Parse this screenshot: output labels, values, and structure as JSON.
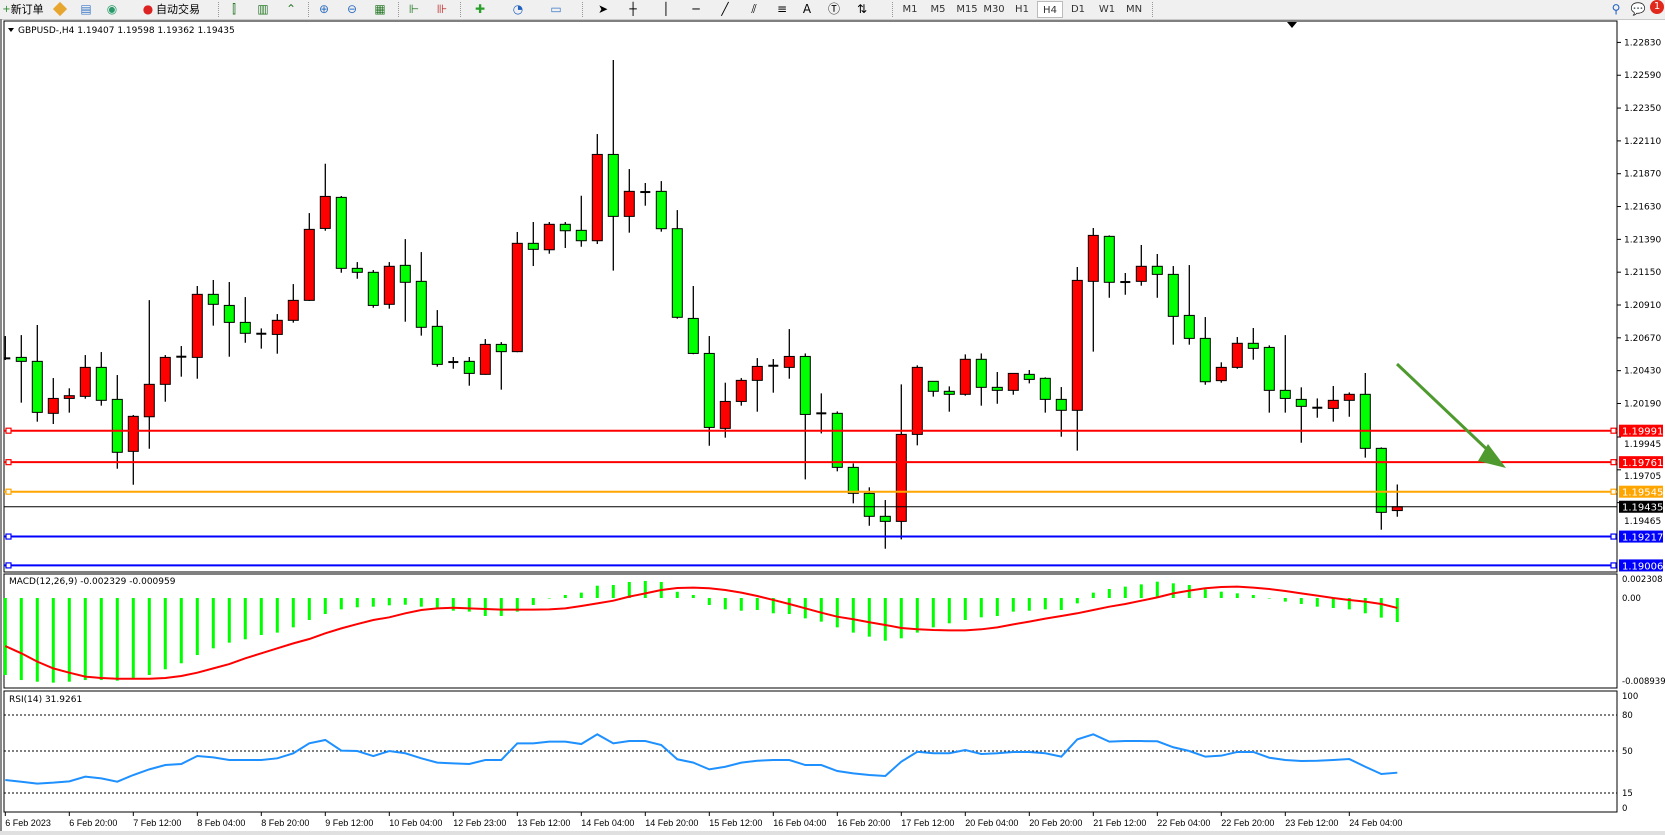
{
  "toolbar": {
    "new_order_label": "新订单",
    "auto_trading_label": "自动交易",
    "icons": [
      "new-order-icon",
      "metaeditor-icon",
      "history-center-icon",
      "signal-icon",
      "auto-trading-icon",
      "bar-chart-icon",
      "candlestick-icon",
      "line-chart-icon",
      "zoom-in-icon",
      "zoom-out-icon",
      "tile-windows-icon",
      "chart-shift-icon",
      "autoscroll-icon",
      "indicators-icon",
      "periods-icon",
      "templates-icon",
      "cursor-icon",
      "crosshair-icon",
      "vertical-line-icon",
      "horizontal-line-icon",
      "trendline-icon",
      "equidistant-channel-icon",
      "fibonacci-icon",
      "text-icon",
      "text-label-icon",
      "arrows-icon",
      "search-icon",
      "notifications-icon"
    ],
    "text_tool_label": "A",
    "timeframes": [
      "M1",
      "M5",
      "M15",
      "M30",
      "H1",
      "H4",
      "D1",
      "W1",
      "MN"
    ],
    "active_timeframe": "H4",
    "notification_count": "1"
  },
  "chart": {
    "header": "GBPUSD-,H4  1.19407 1.19598 1.19362 1.19435",
    "colors": {
      "bull": "#FF0000",
      "bear": "#00FF00",
      "outline": "#000000",
      "arrow": "#4E9A2E"
    },
    "price_ticks": [
      "1.22830",
      "1.22590",
      "1.22350",
      "1.22110",
      "1.21870",
      "1.21630",
      "1.21390",
      "1.21150",
      "1.20910",
      "1.20670",
      "1.20430",
      "1.20190",
      "1.19945",
      "1.19705",
      "1.19465"
    ],
    "levels": [
      {
        "price": "1.19991",
        "color": "#FF0000"
      },
      {
        "price": "1.19761",
        "color": "#FF0000"
      },
      {
        "price": "1.19545",
        "color": "#FFA500"
      },
      {
        "price": "1.19435",
        "color": "#000000",
        "current": true
      },
      {
        "price": "1.19217",
        "color": "#0000FF"
      },
      {
        "price": "1.19006",
        "color": "#0000FF"
      }
    ],
    "time_labels": [
      "6 Feb 2023",
      "6 Feb 20:00",
      "7 Feb 12:00",
      "8 Feb 04:00",
      "8 Feb 20:00",
      "9 Feb 12:00",
      "10 Feb 04:00",
      "12 Feb 23:00",
      "13 Feb 12:00",
      "14 Feb 04:00",
      "14 Feb 20:00",
      "15 Feb 12:00",
      "16 Feb 04:00",
      "16 Feb 20:00",
      "17 Feb 12:00",
      "20 Feb 04:00",
      "20 Feb 20:00",
      "21 Feb 12:00",
      "22 Feb 04:00",
      "22 Feb 20:00",
      "23 Feb 12:00",
      "24 Feb 04:00"
    ]
  },
  "macd": {
    "label": "MACD(12,26,9) -0.002329 -0.000959",
    "axis_labels": [
      "0.002308",
      "0.00",
      "-0.008939"
    ]
  },
  "rsi": {
    "label": "RSI(14) 31.9261",
    "axis_labels": [
      "100",
      "80",
      "50",
      "15",
      "0"
    ]
  },
  "chart_data": [
    {
      "type": "candlestick",
      "title": "GBPUSD-,H4",
      "ylim": [
        1.19006,
        1.2283
      ],
      "grid": false,
      "ohlc_order": [
        "open",
        "high",
        "low",
        "close"
      ],
      "ohlc": [
        [
          1.2052,
          1.20683,
          1.20508,
          1.2052
        ],
        [
          1.20527,
          1.2069,
          1.20196,
          1.20498
        ],
        [
          1.20498,
          1.20764,
          1.20057,
          1.20125
        ],
        [
          1.20118,
          1.20376,
          1.2004,
          1.20227
        ],
        [
          1.20227,
          1.20301,
          1.20123,
          1.20247
        ],
        [
          1.20242,
          1.20544,
          1.20225,
          1.20454
        ],
        [
          1.20454,
          1.20566,
          1.20174,
          1.20213
        ],
        [
          1.2022,
          1.20398,
          1.19713,
          1.19833
        ],
        [
          1.1984,
          1.20106,
          1.19596,
          1.20096
        ],
        [
          1.20093,
          1.20946,
          1.19859,
          1.2033
        ],
        [
          1.2033,
          1.20544,
          1.20203,
          1.20527
        ],
        [
          1.20527,
          1.2061,
          1.20386,
          1.20532
        ],
        [
          1.20527,
          1.21049,
          1.20371,
          1.20988
        ],
        [
          1.20988,
          1.21093,
          1.20759,
          1.20915
        ],
        [
          1.20907,
          1.21078,
          1.20532,
          1.20783
        ],
        [
          1.20783,
          1.20968,
          1.20634,
          1.20703
        ],
        [
          1.20703,
          1.20739,
          1.20591,
          1.207
        ],
        [
          1.20695,
          1.20844,
          1.20554,
          1.20798
        ],
        [
          1.20798,
          1.21063,
          1.20781,
          1.20944
        ],
        [
          1.20944,
          1.21582,
          1.2094,
          1.21463
        ],
        [
          1.2147,
          1.21943,
          1.21453,
          1.21704
        ],
        [
          1.21697,
          1.21707,
          1.21146,
          1.21178
        ],
        [
          1.21178,
          1.21224,
          1.21102,
          1.21149
        ],
        [
          1.21149,
          1.21166,
          1.2089,
          1.20907
        ],
        [
          1.20915,
          1.21224,
          1.20883,
          1.21193
        ],
        [
          1.212,
          1.21392,
          1.20788,
          1.21076
        ],
        [
          1.21083,
          1.21297,
          1.20686,
          1.20747
        ],
        [
          1.20754,
          1.20873,
          1.20459,
          1.20476
        ],
        [
          1.2049,
          1.2053,
          1.20444,
          1.20493
        ],
        [
          1.20498,
          1.2053,
          1.2032,
          1.2041
        ],
        [
          1.20403,
          1.20661,
          1.204,
          1.20622
        ],
        [
          1.20622,
          1.20639,
          1.20291,
          1.20569
        ],
        [
          1.20569,
          1.21444,
          1.20565,
          1.21361
        ],
        [
          1.21361,
          1.21517,
          1.21195,
          1.21317
        ],
        [
          1.21314,
          1.21517,
          1.21285,
          1.215
        ],
        [
          1.215,
          1.21517,
          1.21327,
          1.21453
        ],
        [
          1.21456,
          1.21709,
          1.21336,
          1.2138
        ],
        [
          1.2138,
          1.2216,
          1.21356,
          1.22011
        ],
        [
          1.22011,
          1.22701,
          1.21161,
          1.21558
        ],
        [
          1.21558,
          1.21904,
          1.21439,
          1.21741
        ],
        [
          1.21741,
          1.21802,
          1.21636,
          1.21736
        ],
        [
          1.21741,
          1.21816,
          1.21446,
          1.21468
        ],
        [
          1.21468,
          1.21604,
          1.2081,
          1.2082
        ],
        [
          1.20812,
          1.21049,
          1.2055,
          1.20556
        ],
        [
          1.20556,
          1.20683,
          1.19881,
          1.20015
        ],
        [
          1.20008,
          1.20342,
          1.1994,
          1.20205
        ],
        [
          1.20205,
          1.20376,
          1.20174,
          1.20359
        ],
        [
          1.20359,
          1.20522,
          1.2013,
          1.20461
        ],
        [
          1.20461,
          1.20515,
          1.20269,
          1.20466
        ],
        [
          1.20454,
          1.20734,
          1.20371,
          1.20534
        ],
        [
          1.20534,
          1.20556,
          1.19635,
          1.2011
        ],
        [
          1.2011,
          1.20264,
          1.19971,
          1.20118
        ],
        [
          1.20118,
          1.20132,
          1.19694,
          1.19723
        ],
        [
          1.19723,
          1.19752,
          1.1946,
          1.19533
        ],
        [
          1.19533,
          1.19577,
          1.19296,
          1.19365
        ],
        [
          1.19365,
          1.19484,
          1.19128,
          1.19328
        ],
        [
          1.19328,
          1.2033,
          1.19196,
          1.19964
        ],
        [
          1.19964,
          1.20469,
          1.19884,
          1.20454
        ],
        [
          1.20352,
          1.20352,
          1.2024,
          1.20279
        ],
        [
          1.20279,
          1.20315,
          1.2013,
          1.20257
        ],
        [
          1.20257,
          1.20549,
          1.20247,
          1.20513
        ],
        [
          1.20513,
          1.20556,
          1.20174,
          1.20308
        ],
        [
          1.20308,
          1.2042,
          1.20188,
          1.20286
        ],
        [
          1.20286,
          1.2041,
          1.20254,
          1.2041
        ],
        [
          1.20403,
          1.20435,
          1.20337,
          1.20366
        ],
        [
          1.20374,
          1.20381,
          1.20123,
          1.2022
        ],
        [
          1.2022,
          1.2031,
          1.19947,
          1.2014
        ],
        [
          1.2014,
          1.21188,
          1.19845,
          1.2109
        ],
        [
          1.21083,
          1.21473,
          1.20569,
          1.21419
        ],
        [
          1.21412,
          1.21419,
          1.20963,
          1.21076
        ],
        [
          1.21076,
          1.21144,
          1.20985,
          1.21078
        ],
        [
          1.21083,
          1.21349,
          1.21051,
          1.21193
        ],
        [
          1.21193,
          1.21283,
          1.20963,
          1.21134
        ],
        [
          1.21134,
          1.21195,
          1.2062,
          1.20827
        ],
        [
          1.20834,
          1.21202,
          1.2062,
          1.20666
        ],
        [
          1.20666,
          1.20822,
          1.20327,
          1.20349
        ],
        [
          1.20357,
          1.20491,
          1.20342,
          1.20454
        ],
        [
          1.20454,
          1.20676,
          1.20444,
          1.2063
        ],
        [
          1.2063,
          1.20742,
          1.2051,
          1.20593
        ],
        [
          1.206,
          1.20615,
          1.20123,
          1.20286
        ],
        [
          1.20286,
          1.2069,
          1.20123,
          1.20227
        ],
        [
          1.2022,
          1.20308,
          1.19903,
          1.20169
        ],
        [
          1.20165,
          1.20227,
          1.20086,
          1.20159
        ],
        [
          1.20154,
          1.20318,
          1.20057,
          1.20213
        ],
        [
          1.20213,
          1.20271,
          1.20093,
          1.20257
        ],
        [
          1.20257,
          1.20413,
          1.19794,
          1.19862
        ],
        [
          1.19862,
          1.19869,
          1.19267,
          1.19394
        ],
        [
          1.19407,
          1.19598,
          1.19362,
          1.19435
        ]
      ]
    },
    {
      "type": "bar",
      "title": "MACD(12,26,9)",
      "ylim": [
        -0.008939,
        0.002308
      ],
      "series": [
        {
          "name": "MACD",
          "kind": "histogram",
          "values": [
            -0.00745,
            -0.00794,
            -0.0081,
            -0.00819,
            -0.0081,
            -0.00794,
            -0.00794,
            -0.008,
            -0.00777,
            -0.00745,
            -0.0069,
            -0.00632,
            -0.00552,
            -0.00487,
            -0.00432,
            -0.004,
            -0.00358,
            -0.00335,
            -0.00284,
            -0.00213,
            -0.00155,
            -0.0011,
            -0.0009,
            -0.00084,
            -0.00071,
            -0.00065,
            -0.00084,
            -0.001,
            -0.00123,
            -0.00132,
            -0.00174,
            -0.00174,
            -0.00132,
            -0.00068,
            -3e-05,
            0.00029,
            0.00052,
            0.00119,
            0.00126,
            0.00155,
            0.00165,
            0.00155,
            0.0006,
            0.00029,
            -0.00068,
            -0.0011,
            -0.00123,
            -0.00116,
            -0.00148,
            -0.00155,
            -0.00197,
            -0.00229,
            -0.00284,
            -0.00335,
            -0.00374,
            -0.00413,
            -0.0039,
            -0.00335,
            -0.00284,
            -0.00245,
            -0.00213,
            -0.00187,
            -0.00174,
            -0.00132,
            -0.00123,
            -0.0011,
            -0.00116,
            -0.00052,
            0.00052,
            0.00087,
            0.0011,
            0.00132,
            0.00158,
            0.00142,
            0.00126,
            0.00084,
            0.00061,
            0.00045,
            0.00029,
            0.0,
            -0.00035,
            -0.00058,
            -0.00084,
            -0.00097,
            -0.0011,
            -0.00148,
            -0.0019,
            -0.002329
          ],
          "color": "#00FF00"
        },
        {
          "name": "Signal",
          "kind": "line",
          "values": [
            -0.00465,
            -0.00535,
            -0.00616,
            -0.00681,
            -0.00723,
            -0.00761,
            -0.00774,
            -0.00781,
            -0.00781,
            -0.00781,
            -0.00774,
            -0.00755,
            -0.00723,
            -0.00681,
            -0.00639,
            -0.00584,
            -0.00535,
            -0.00487,
            -0.00439,
            -0.00397,
            -0.00342,
            -0.00294,
            -0.00252,
            -0.00213,
            -0.00187,
            -0.00148,
            -0.00116,
            -0.001,
            -0.00094,
            -0.001,
            -0.00106,
            -0.00113,
            -0.00113,
            -0.00113,
            -0.0011,
            -0.001,
            -0.00077,
            -0.00052,
            -0.00026,
            0.00013,
            0.00045,
            0.00077,
            0.00097,
            0.001,
            0.00094,
            0.00077,
            0.00052,
            0.00019,
            -0.00019,
            -0.00058,
            -0.001,
            -0.00142,
            -0.00181,
            -0.00206,
            -0.00235,
            -0.00261,
            -0.0029,
            -0.00303,
            -0.0031,
            -0.00313,
            -0.00313,
            -0.00303,
            -0.00284,
            -0.00255,
            -0.00229,
            -0.002,
            -0.00174,
            -0.00148,
            -0.00116,
            -0.00084,
            -0.00058,
            -0.00026,
            6e-05,
            0.00045,
            0.00071,
            0.00094,
            0.00106,
            0.0011,
            0.001,
            0.00087,
            0.00068,
            0.00045,
            0.00023,
            0.0,
            -0.00019,
            -0.00035,
            -0.00058,
            -0.000959
          ],
          "color": "#FF0000"
        }
      ]
    },
    {
      "type": "line",
      "title": "RSI(14)",
      "ylim": [
        0,
        100
      ],
      "levels": [
        80,
        50,
        15
      ],
      "series": [
        {
          "name": "RSI(14)",
          "values": [
            25.8,
            24.4,
            22.8,
            23.6,
            24.7,
            28.6,
            27.2,
            24.4,
            30.0,
            34.7,
            38.3,
            39.2,
            45.8,
            44.7,
            42.5,
            42.5,
            42.5,
            43.9,
            48.1,
            56.4,
            59.2,
            50.3,
            50.0,
            45.8,
            50.0,
            48.1,
            43.9,
            40.3,
            39.7,
            39.2,
            42.5,
            42.5,
            56.4,
            56.4,
            57.8,
            57.8,
            55.8,
            63.9,
            56.4,
            58.3,
            58.3,
            55.0,
            43.1,
            40.3,
            34.7,
            36.9,
            40.3,
            41.9,
            42.5,
            42.5,
            38.3,
            38.3,
            33.3,
            31.4,
            30.0,
            29.2,
            41.1,
            49.4,
            48.1,
            48.1,
            50.8,
            47.5,
            48.1,
            49.2,
            49.2,
            48.1,
            45.3,
            59.7,
            63.9,
            57.8,
            58.3,
            58.3,
            58.1,
            53.1,
            50.0,
            45.3,
            46.1,
            49.2,
            49.2,
            44.4,
            42.5,
            41.7,
            41.9,
            42.5,
            43.3,
            36.9,
            30.8,
            31.9261
          ],
          "color": "#1E90FF"
        }
      ]
    }
  ]
}
